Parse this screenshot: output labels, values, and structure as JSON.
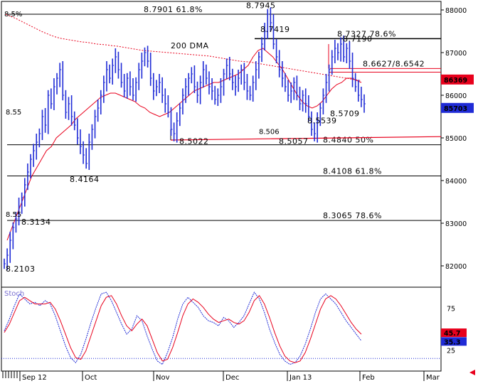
{
  "chart_data": [
    {
      "type": "candlestick",
      "title": "",
      "ylim": [
        8.15,
        8.82
      ],
      "yticks": [
        {
          "value": 8.8,
          "label": "88000"
        },
        {
          "value": 8.7,
          "label": "87000"
        },
        {
          "value": 8.6,
          "label": "86000"
        },
        {
          "value": 8.5,
          "label": "85000"
        },
        {
          "value": 8.4,
          "label": "84000"
        },
        {
          "value": 8.3,
          "label": "83000"
        },
        {
          "value": 8.2,
          "label": "82000"
        }
      ],
      "xticks": [
        "Sep 12",
        "Oct",
        "Nov",
        "Dec",
        "Jan 13",
        "Feb",
        "Mar"
      ],
      "price_tags": [
        {
          "label": "86369",
          "value": 8.6369,
          "color": "#e8001c"
        },
        {
          "label": "85703",
          "value": 8.5703,
          "color": "#1f2bd6"
        }
      ],
      "horizontal_levels": [
        {
          "value": 8.7901,
          "label": "8.7901 61.8%",
          "color": "#000000"
        },
        {
          "value": 8.7327,
          "label": "8.7327 78.6%",
          "color": "#000000"
        },
        {
          "value": 8.6627,
          "label": "8.6627/8.6542",
          "color": "#e8001c"
        },
        {
          "value": 8.484,
          "label": "8.4840 50%",
          "color": "#000000"
        },
        {
          "value": 8.4108,
          "label": "8.4108 61.8%",
          "color": "#000000"
        },
        {
          "value": 8.3065,
          "label": "8.3065 78.6%",
          "color": "#000000"
        }
      ],
      "price_labels": [
        {
          "label": "8.7945",
          "value": 8.7945
        },
        {
          "label": "8.7419",
          "value": 8.7419
        },
        {
          "label": "8.7190",
          "value": 8.719
        },
        {
          "label": "8.5709",
          "value": 8.5709
        },
        {
          "label": "8.5539",
          "value": 8.5539
        },
        {
          "label": "8.5057",
          "value": 8.5057
        },
        {
          "label": "8.5022",
          "value": 8.5022
        },
        {
          "label": "8.4164",
          "value": 8.4164
        },
        {
          "label": "8.3134",
          "value": 8.3134
        },
        {
          "label": "8.2103",
          "value": 8.2103
        }
      ],
      "moving_average": {
        "name": "200 DMA",
        "color": "#e8001c"
      },
      "annotations": [
        "8.5%",
        "8.55",
        "8.55",
        "8.506"
      ],
      "series_close": [
        8.205,
        8.225,
        8.26,
        8.29,
        8.31,
        8.34,
        8.36,
        8.39,
        8.42,
        8.45,
        8.47,
        8.49,
        8.51,
        8.55,
        8.53,
        8.6,
        8.58,
        8.62,
        8.64,
        8.66,
        8.6,
        8.56,
        8.58,
        8.55,
        8.53,
        8.5,
        8.48,
        8.46,
        8.44,
        8.49,
        8.52,
        8.55,
        8.57,
        8.6,
        8.63,
        8.66,
        8.64,
        8.67,
        8.69,
        8.66,
        8.63,
        8.61,
        8.64,
        8.62,
        8.6,
        8.63,
        8.66,
        8.68,
        8.7,
        8.68,
        8.64,
        8.61,
        8.62,
        8.63,
        8.6,
        8.58,
        8.56,
        8.52,
        8.51,
        8.54,
        8.57,
        8.6,
        8.62,
        8.64,
        8.65,
        8.62,
        8.6,
        8.63,
        8.66,
        8.64,
        8.62,
        8.61,
        8.59,
        8.6,
        8.62,
        8.65,
        8.67,
        8.65,
        8.63,
        8.62,
        8.64,
        8.66,
        8.63,
        8.61,
        8.6,
        8.63,
        8.66,
        8.69,
        8.72,
        8.75,
        8.79,
        8.77,
        8.72,
        8.69,
        8.66,
        8.64,
        8.62,
        8.6,
        8.61,
        8.63,
        8.6,
        8.58,
        8.6,
        8.58,
        8.55,
        8.52,
        8.51,
        8.54,
        8.57,
        8.6,
        8.63,
        8.66,
        8.69,
        8.71,
        8.7,
        8.72,
        8.69,
        8.71,
        8.68,
        8.64,
        8.62,
        8.6,
        8.59,
        8.58
      ],
      "series_ma": [
        8.79,
        8.785,
        8.78,
        8.774,
        8.768,
        8.762,
        8.756,
        8.75,
        8.745,
        8.74,
        8.736,
        8.733,
        8.731,
        8.729,
        8.727,
        8.725,
        8.724,
        8.722,
        8.72,
        8.719,
        8.718,
        8.716,
        8.715,
        8.713,
        8.711,
        8.709,
        8.707,
        8.705,
        8.704,
        8.703,
        8.702,
        8.701,
        8.7,
        8.699,
        8.698,
        8.697,
        8.696,
        8.695,
        8.694,
        8.693,
        8.692,
        8.69,
        8.688,
        8.686,
        8.684,
        8.682,
        8.68,
        8.679,
        8.678,
        8.676,
        8.674,
        8.672,
        8.67,
        8.668,
        8.666,
        8.664,
        8.662,
        8.66,
        8.658,
        8.656,
        8.654,
        8.652,
        8.65,
        8.648,
        8.646,
        8.644,
        8.642,
        8.64,
        8.638,
        8.636,
        8.634
      ],
      "series_ma_short": [
        8.26,
        8.29,
        8.32,
        8.35,
        8.38,
        8.41,
        8.43,
        8.45,
        8.47,
        8.48,
        8.5,
        8.51,
        8.52,
        8.53,
        8.545,
        8.555,
        8.565,
        8.575,
        8.585,
        8.595,
        8.6,
        8.605,
        8.605,
        8.6,
        8.595,
        8.59,
        8.585,
        8.575,
        8.57,
        8.56,
        8.555,
        8.55,
        8.555,
        8.56,
        8.57,
        8.58,
        8.59,
        8.6,
        8.61,
        8.615,
        8.62,
        8.625,
        8.63,
        8.63,
        8.635,
        8.64,
        8.645,
        8.65,
        8.66,
        8.67,
        8.69,
        8.705,
        8.71,
        8.7,
        8.69,
        8.675,
        8.66,
        8.64,
        8.62,
        8.6,
        8.585,
        8.575,
        8.57,
        8.575,
        8.585,
        8.6,
        8.615,
        8.625,
        8.63,
        8.64,
        8.64,
        8.635,
        8.63
      ]
    },
    {
      "type": "line",
      "title": "Stoch",
      "ylim": [
        0,
        100
      ],
      "yticks": [
        {
          "value": 75,
          "label": "75"
        },
        {
          "value": 25,
          "label": "25"
        }
      ],
      "reference_level": 15,
      "price_tags": [
        {
          "label": "45.7",
          "value": 45.7,
          "color": "#e8001c"
        },
        {
          "label": "35.3",
          "value": 35.3,
          "color": "#1f2bd6"
        }
      ],
      "series": [
        {
          "color": "#1f2bd6",
          "values": [
            48,
            62,
            78,
            92,
            86,
            80,
            82,
            78,
            84,
            80,
            66,
            48,
            30,
            16,
            10,
            20,
            38,
            58,
            76,
            92,
            94,
            84,
            70,
            56,
            44,
            50,
            66,
            60,
            42,
            26,
            12,
            8,
            22,
            40,
            62,
            80,
            88,
            82,
            76,
            66,
            60,
            58,
            54,
            64,
            60,
            52,
            58,
            66,
            80,
            94,
            86,
            70,
            50,
            34,
            20,
            12,
            8,
            10,
            18,
            32,
            50,
            70,
            86,
            92,
            86,
            80,
            70,
            60,
            52,
            44,
            36
          ]
        },
        {
          "color": "#e8001c",
          "values": [
            46,
            56,
            70,
            84,
            88,
            84,
            80,
            80,
            80,
            82,
            74,
            60,
            44,
            28,
            16,
            14,
            24,
            42,
            60,
            78,
            88,
            90,
            80,
            66,
            54,
            48,
            56,
            62,
            54,
            38,
            22,
            12,
            14,
            28,
            46,
            66,
            80,
            86,
            82,
            76,
            68,
            62,
            58,
            60,
            62,
            58,
            56,
            60,
            70,
            84,
            90,
            80,
            64,
            46,
            30,
            18,
            12,
            10,
            12,
            22,
            38,
            56,
            74,
            86,
            90,
            86,
            78,
            68,
            58,
            50,
            44
          ]
        }
      ]
    }
  ]
}
